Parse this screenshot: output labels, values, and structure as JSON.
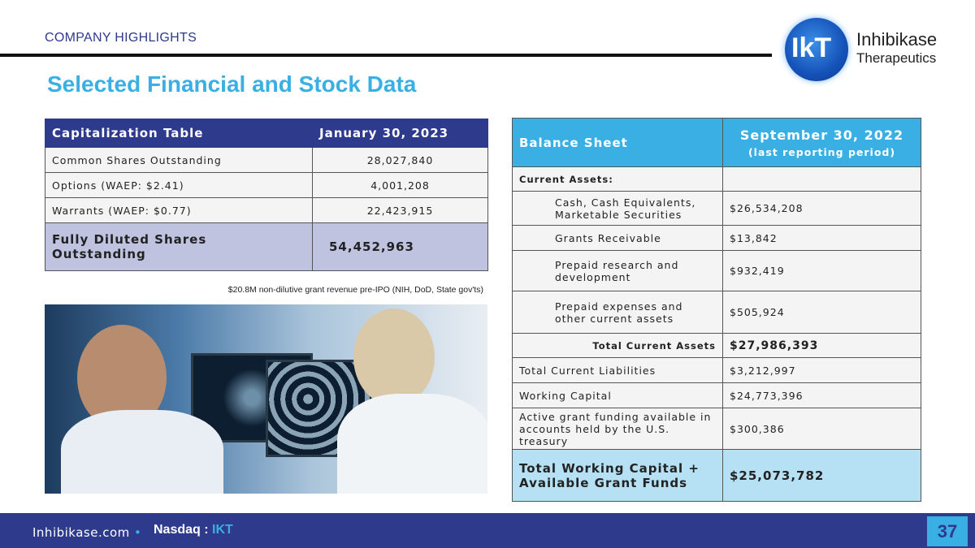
{
  "header": {
    "kicker": "COMPANY HIGHLIGHTS",
    "title": "Selected Financial and Stock Data"
  },
  "logo": {
    "mark": "IkT",
    "name": "Inhibikase",
    "sub": "Therapeutics"
  },
  "cap_table": {
    "headers": [
      "Capitalization Table",
      "January 30, 2023"
    ],
    "rows": [
      [
        "Common Shares Outstanding",
        "28,027,840"
      ],
      [
        "Options (WAEP: $2.41)",
        "4,001,208"
      ],
      [
        "Warrants (WAEP: $0.77)",
        "22,423,915"
      ]
    ],
    "total": [
      "Fully Diluted Shares Outstanding",
      "54,452,963"
    ]
  },
  "caption": "$20.8M non-dilutive grant revenue pre-IPO (NIH, DoD, State gov'ts)",
  "balance_sheet": {
    "header_label": "Balance Sheet",
    "header_date": "September 30, 2022",
    "header_note": "(last reporting period)",
    "current_assets_label": "Current Assets:",
    "rows": [
      [
        "Cash, Cash Equivalents, Marketable Securities",
        "$26,534,208"
      ],
      [
        "Grants Receivable",
        "$13,842"
      ],
      [
        "Prepaid research and development",
        "$932,419"
      ],
      [
        "Prepaid expenses and other current assets",
        "$505,924"
      ]
    ],
    "total_current_assets": [
      "Total Current Assets",
      "$27,986,393"
    ],
    "other": [
      [
        "Total Current Liabilities",
        "$3,212,997"
      ],
      [
        "Working Capital",
        "$24,773,396"
      ],
      [
        "Active grant funding available in accounts held by the U.S. treasury",
        "$300,386"
      ]
    ],
    "grand_total": [
      "Total Working Capital + Available Grant Funds",
      "$25,073,782"
    ]
  },
  "footer": {
    "site": "Inhibikase.com",
    "bullet": "•",
    "exchange": "Nasdaq",
    "sep": " : ",
    "ticker": "IKT",
    "page": "37"
  }
}
